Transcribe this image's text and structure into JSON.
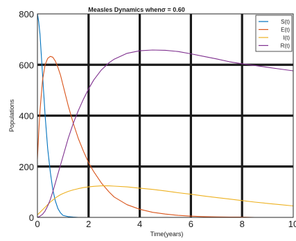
{
  "chart_data": {
    "type": "line",
    "title": "Measles Dynamics whenσ = 0.60",
    "xlabel": "Time(years)",
    "ylabel": "Populations",
    "xlim": [
      0,
      10
    ],
    "ylim": [
      0,
      800
    ],
    "xticks": [
      "0",
      "2",
      "4",
      "6",
      "8",
      "10"
    ],
    "yticks": [
      "0",
      "200",
      "400",
      "600",
      "800"
    ],
    "grid": true,
    "legend_position": "top-right",
    "x": [
      0,
      0.05,
      0.1,
      0.2,
      0.3,
      0.4,
      0.5,
      0.6,
      0.7,
      0.8,
      0.9,
      1.0,
      1.2,
      1.4,
      1.6,
      1.8,
      2.0,
      2.2,
      2.5,
      2.8,
      3.0,
      3.5,
      4.0,
      4.5,
      5.0,
      5.5,
      6.0,
      6.5,
      7.0,
      7.5,
      8.0,
      8.5,
      9.0,
      9.5,
      10.0
    ],
    "series": [
      {
        "name": "S(t)",
        "color": "#0072BD",
        "values": [
          800,
          770,
          720,
          560,
          400,
          270,
          180,
          110,
          65,
          35,
          18,
          8,
          3,
          1,
          0,
          0,
          0,
          0,
          0,
          0,
          0,
          0,
          0,
          0,
          0,
          0,
          0,
          0,
          0,
          0,
          0,
          0,
          0,
          0,
          0
        ]
      },
      {
        "name": "E(t)",
        "color": "#D95319",
        "values": [
          230,
          330,
          420,
          540,
          600,
          625,
          633,
          630,
          615,
          590,
          560,
          520,
          440,
          370,
          310,
          260,
          215,
          180,
          135,
          100,
          80,
          50,
          32,
          20,
          13,
          8,
          5,
          3,
          2,
          1,
          1,
          0,
          0,
          0,
          0
        ]
      },
      {
        "name": "I(t)",
        "color": "#EDB120",
        "values": [
          10,
          15,
          20,
          30,
          40,
          50,
          60,
          68,
          76,
          83,
          89,
          94,
          102,
          108,
          113,
          117,
          120,
          122,
          124,
          124,
          123,
          120,
          115,
          110,
          104,
          97,
          91,
          84,
          78,
          72,
          66,
          60,
          55,
          50,
          45
        ]
      },
      {
        "name": "R(t)",
        "color": "#7E2F8E",
        "values": [
          0,
          2,
          5,
          12,
          25,
          45,
          70,
          100,
          135,
          170,
          205,
          240,
          310,
          370,
          420,
          465,
          505,
          540,
          580,
          608,
          622,
          645,
          655,
          658,
          657,
          652,
          643,
          633,
          623,
          612,
          604,
          597,
          590,
          583,
          576
        ]
      }
    ]
  }
}
